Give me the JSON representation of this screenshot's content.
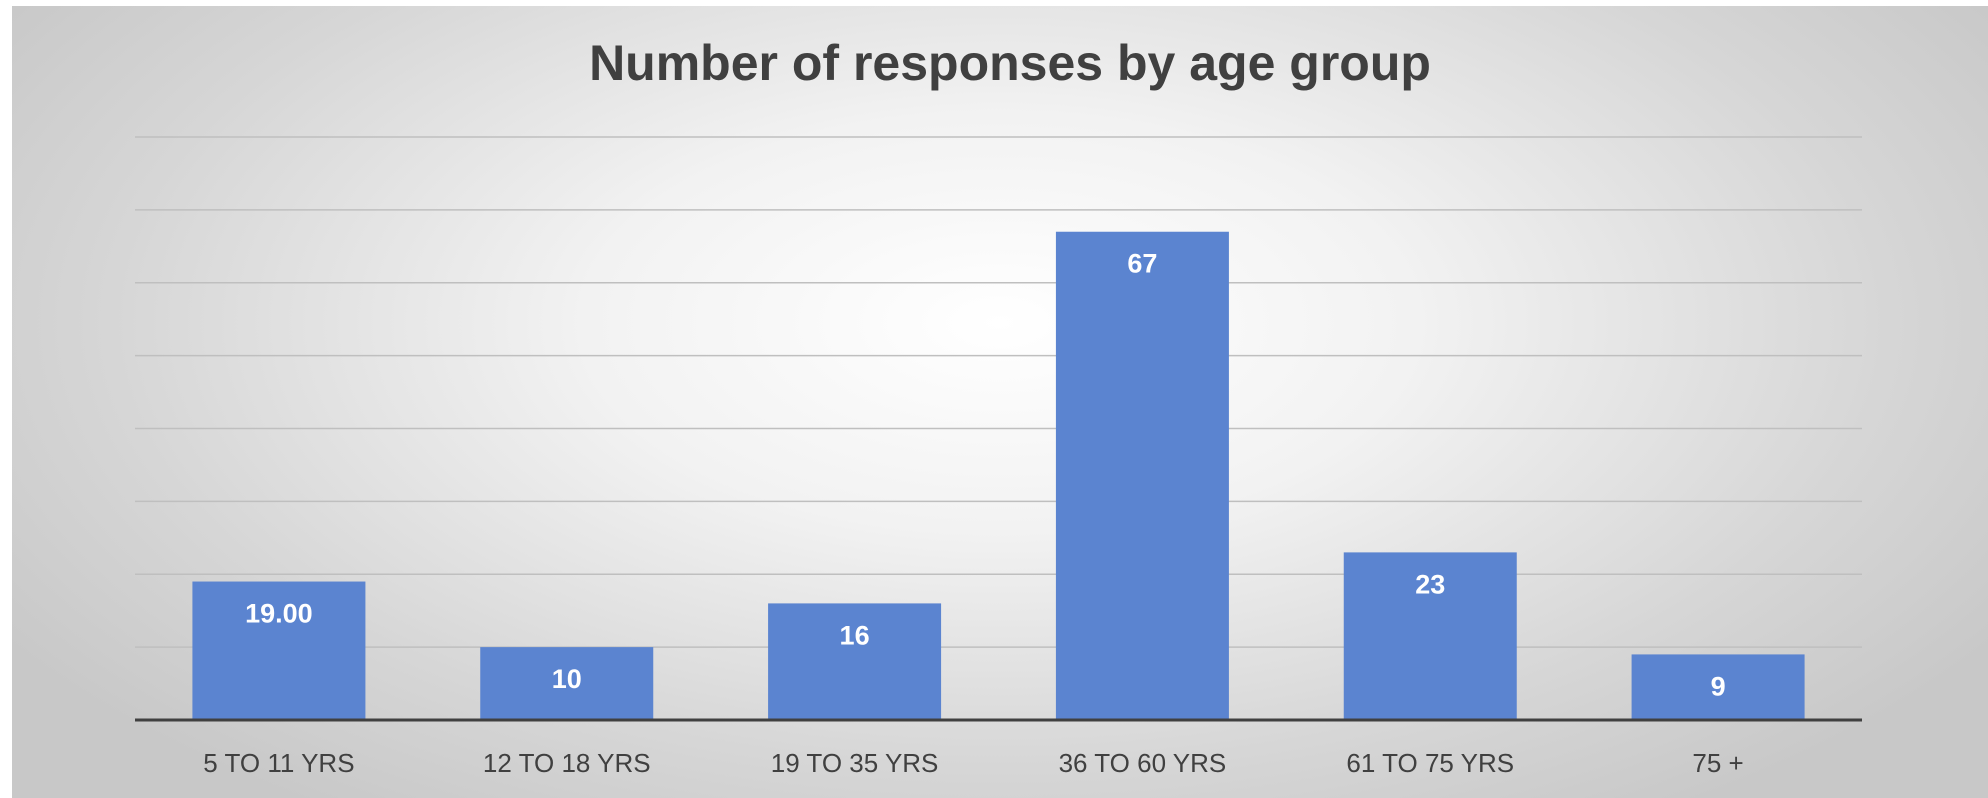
{
  "chart_data": {
    "type": "bar",
    "title": "Number of responses by age group",
    "xlabel": "",
    "ylabel": "",
    "categories": [
      "5 TO 11 YRS",
      "12 TO 18 YRS",
      "19 TO 35 YRS",
      "36 TO 60 YRS",
      "61 TO 75 YRS",
      "75 +"
    ],
    "values": [
      19,
      10,
      16,
      67,
      23,
      9
    ],
    "data_labels": [
      "19.00",
      "10",
      "16",
      "67",
      "23",
      "9"
    ],
    "ylim": [
      0,
      80
    ],
    "y_gridline_step": 10,
    "y_tick_labels_visible": false,
    "grid": true,
    "legend": "none",
    "bar_color": "#5b84d0",
    "gridline_color": "#bfbfbf",
    "axis_color": "#404040",
    "text_color": "#404040",
    "label_color": "#ffffff"
  }
}
